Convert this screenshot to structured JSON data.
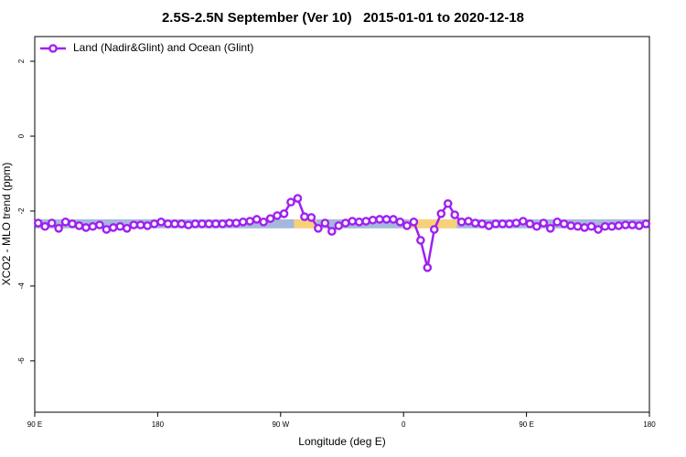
{
  "chart_data": {
    "type": "line",
    "title": "2.5S-2.5N September (Ver 10)   2015-01-01 to 2020-12-18",
    "x_label": "Longitude (deg E)",
    "y_label": "XCO2 - MLO trend (ppm)",
    "xlim": [
      90,
      540
    ],
    "xticks": [
      {
        "value": 90,
        "label": "90 E"
      },
      {
        "value": 180,
        "label": "180"
      },
      {
        "value": 270,
        "label": "90 W"
      },
      {
        "value": 360,
        "label": "0"
      },
      {
        "value": 450,
        "label": "90 E"
      },
      {
        "value": 540,
        "label": "180"
      }
    ],
    "ylim": [
      -7.37,
      2.66
    ],
    "yticks": [
      2,
      0,
      -2,
      -4,
      -6
    ],
    "legend": "top-left",
    "band_ylim": [
      -2.46,
      -2.22
    ],
    "bands": [
      {
        "x": [
          90,
          280
        ],
        "color": "#a5b8dc"
      },
      {
        "x": [
          280,
          296
        ],
        "color": "#f7d07a"
      },
      {
        "x": [
          296,
          364
        ],
        "color": "#a5b8dc"
      },
      {
        "x": [
          364,
          399
        ],
        "color": "#f7d07a"
      },
      {
        "x": [
          399,
          540
        ],
        "color": "#a5b8dc"
      }
    ],
    "x": [
      92.5,
      97.5,
      102.5,
      107.5,
      112.5,
      117.5,
      122.5,
      127.5,
      132.5,
      137.5,
      142.5,
      147.5,
      152.5,
      157.5,
      162.5,
      167.5,
      172.5,
      177.5,
      182.5,
      187.5,
      192.5,
      197.5,
      202.5,
      207.5,
      212.5,
      217.5,
      222.5,
      227.5,
      232.5,
      237.5,
      242.5,
      247.5,
      252.5,
      257.5,
      262.5,
      267.5,
      272.5,
      277.5,
      282.5,
      287.5,
      292.5,
      297.5,
      302.5,
      307.5,
      312.5,
      317.5,
      322.5,
      327.5,
      332.5,
      337.5,
      342.5,
      347.5,
      352.5,
      357.5,
      362.5,
      367.5,
      372.5,
      377.5,
      382.5,
      387.5,
      392.5,
      397.5,
      402.5,
      407.5,
      412.5,
      417.5,
      422.5,
      427.5,
      432.5,
      437.5,
      442.5,
      447.5,
      452.5,
      457.5,
      462.5,
      467.5,
      472.5,
      477.5,
      482.5,
      487.5,
      492.5,
      497.5,
      502.5,
      507.5,
      512.5,
      517.5,
      522.5,
      527.5,
      532.5,
      537.5
    ],
    "series": [
      {
        "name": "Land (Nadir&Glint) and Ocean (Glint)",
        "color": "#a020f0",
        "values": [
          -2.32,
          -2.41,
          -2.32,
          -2.46,
          -2.29,
          -2.34,
          -2.39,
          -2.44,
          -2.41,
          -2.37,
          -2.49,
          -2.44,
          -2.41,
          -2.46,
          -2.37,
          -2.37,
          -2.39,
          -2.34,
          -2.29,
          -2.34,
          -2.34,
          -2.34,
          -2.37,
          -2.34,
          -2.34,
          -2.34,
          -2.34,
          -2.34,
          -2.32,
          -2.32,
          -2.29,
          -2.27,
          -2.22,
          -2.29,
          -2.2,
          -2.12,
          -2.07,
          -1.76,
          -1.66,
          -2.15,
          -2.17,
          -2.46,
          -2.32,
          -2.54,
          -2.39,
          -2.32,
          -2.27,
          -2.29,
          -2.27,
          -2.24,
          -2.22,
          -2.22,
          -2.22,
          -2.29,
          -2.39,
          -2.29,
          -2.78,
          -3.51,
          -2.49,
          -2.07,
          -1.8,
          -2.1,
          -2.29,
          -2.27,
          -2.32,
          -2.34,
          -2.39,
          -2.34,
          -2.34,
          -2.34,
          -2.32,
          -2.27,
          -2.34,
          -2.41,
          -2.32,
          -2.46,
          -2.29,
          -2.34,
          -2.39,
          -2.41,
          -2.44,
          -2.41,
          -2.49,
          -2.41,
          -2.41,
          -2.39,
          -2.37,
          -2.37,
          -2.39,
          -2.34
        ]
      }
    ]
  }
}
